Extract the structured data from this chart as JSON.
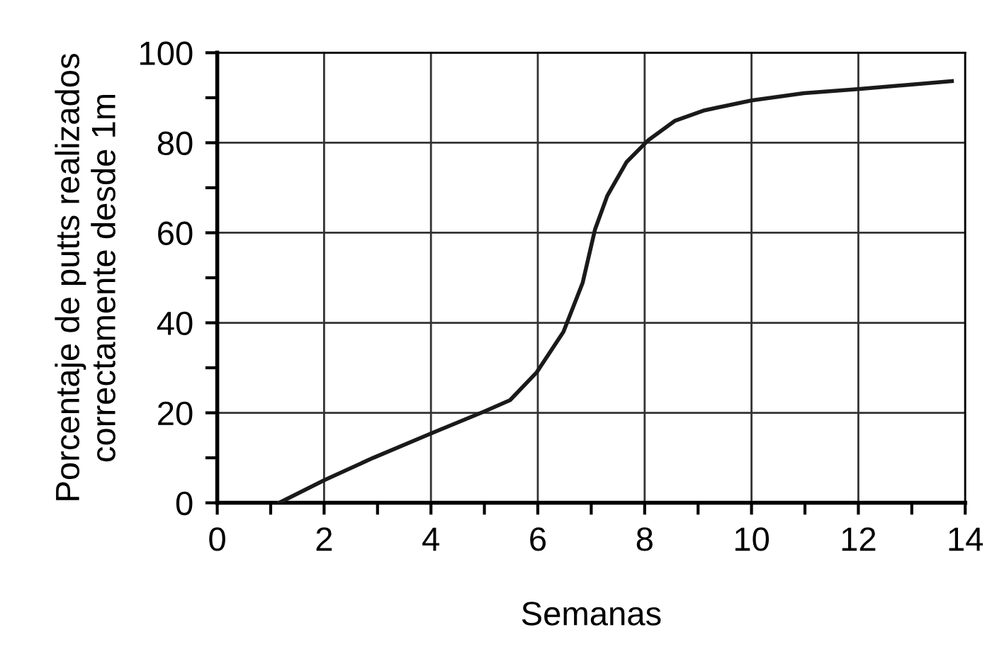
{
  "chart_data": {
    "type": "line",
    "xlabel": "Semanas",
    "ylabel": "Porcentaje de putts realizados\ncorrectamente desde 1m",
    "x": [
      1.16,
      2.0,
      2.92,
      4.04,
      4.98,
      5.48,
      5.98,
      6.48,
      6.84,
      7.07,
      7.3,
      7.66,
      8.07,
      8.57,
      9.12,
      10.0,
      10.98,
      11.99,
      13.75
    ],
    "series": [
      {
        "color": "#1a1a1a",
        "values": [
          0,
          5.0,
          10,
          15.6,
          20.2,
          22.8,
          29,
          38,
          48.9,
          60.7,
          68.2,
          75.7,
          80.6,
          84.9,
          87.2,
          89.4,
          91,
          91.9,
          93.7
        ]
      }
    ],
    "xlim": [
      0,
      14
    ],
    "ylim": [
      0,
      100
    ],
    "xticks": [
      0,
      {
        "value": 1,
        "label": null
      },
      2,
      {
        "value": 3,
        "label": null
      },
      4,
      {
        "value": 5,
        "label": null
      },
      6,
      {
        "value": 7,
        "label": null
      },
      8,
      {
        "value": 9,
        "label": null
      },
      10,
      {
        "value": 11,
        "label": null
      },
      12,
      {
        "value": 13,
        "label": null
      },
      14
    ],
    "yticks": [
      0,
      {
        "value": 10,
        "label": null
      },
      20,
      {
        "value": 30,
        "label": null
      },
      40,
      {
        "value": 50,
        "label": null
      },
      60,
      {
        "value": 70,
        "label": null
      },
      80,
      {
        "value": 90,
        "label": null
      },
      100
    ],
    "grid": true,
    "marker": "none",
    "line_style": "solid"
  }
}
